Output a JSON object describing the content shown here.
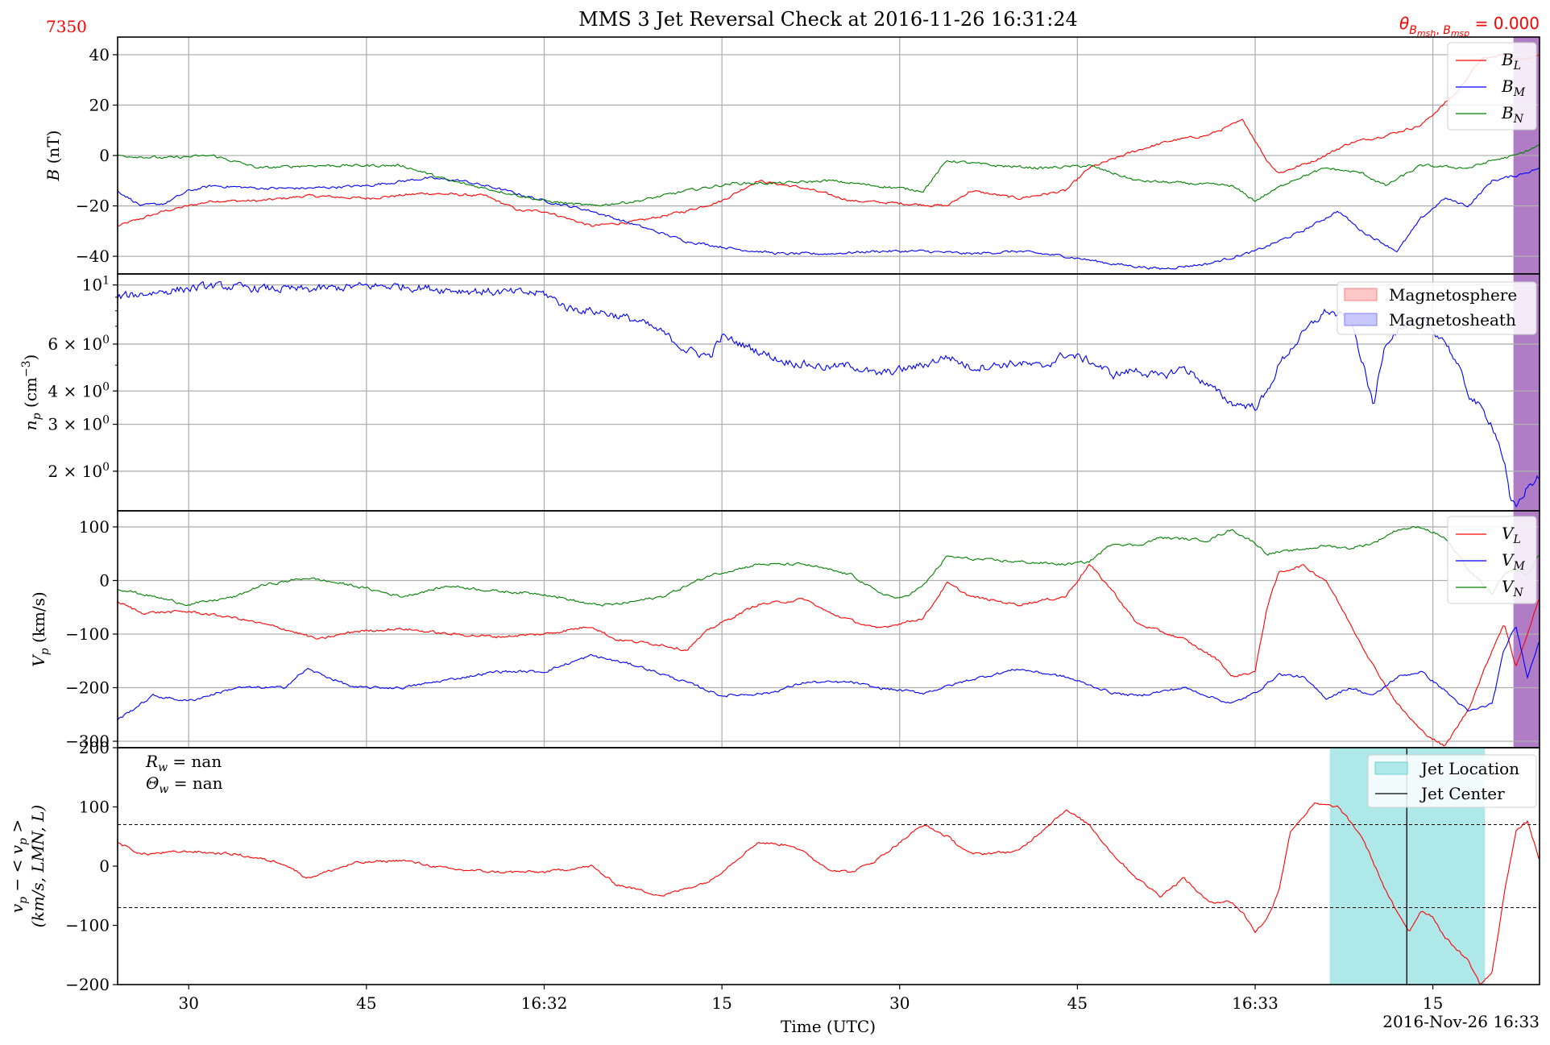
{
  "header": {
    "id_label": "7350",
    "title": "MMS 3 Jet Reversal Check at 2016-11-26 16:31:24",
    "theta_label": "θ_{B_msh, B_msp} = 0.000",
    "theta_prefix": "θ",
    "theta_sub": "B",
    "theta_subsub": "msh",
    "theta_sep": ", ",
    "theta_subsub2": "msp",
    "theta_value": " = 0.000"
  },
  "x_axis": {
    "label": "Time (UTC)",
    "date_label": "2016-Nov-26 16:33",
    "ticks": [
      "30",
      "45",
      "16:32",
      "15",
      "30",
      "45",
      "16:33",
      "15"
    ],
    "tick_seconds": [
      30,
      45,
      60,
      75,
      90,
      105,
      120,
      135
    ],
    "range_seconds": [
      24,
      144
    ]
  },
  "colors": {
    "red": "#ff0000",
    "blue": "#0000ff",
    "green": "#008000",
    "purple_band": "#b07cc6",
    "cyan_band": "#aee8e8",
    "pink_patch": "#ffc8c8",
    "lavender_patch": "#c8c8ff"
  },
  "chart_data": [
    {
      "type": "line",
      "ylabel": "B (nT)",
      "ylim": [
        -47,
        47
      ],
      "yticks": [
        40,
        20,
        0,
        -20,
        -40
      ],
      "ytick_labels": [
        "40",
        "20",
        "0",
        "−20",
        "−40"
      ],
      "grid": true,
      "band": {
        "x_start": 141.8,
        "x_end": 144,
        "color": "purple"
      },
      "series": [
        {
          "name": "B_L",
          "color": "red",
          "x": [
            24,
            28,
            32,
            36,
            40,
            45,
            50,
            55,
            58,
            60,
            64,
            68,
            72,
            75,
            78,
            82,
            86,
            90,
            94,
            96,
            100,
            104,
            106,
            110,
            113,
            116,
            119,
            121,
            122,
            125,
            128,
            131,
            134,
            137,
            139,
            141,
            142,
            144
          ],
          "values": [
            -28,
            -22,
            -18,
            -18,
            -16,
            -17,
            -15,
            -16,
            -22,
            -22,
            -28,
            -26,
            -22,
            -18,
            -10,
            -13,
            -18,
            -19,
            -20,
            -14,
            -17,
            -14,
            -5,
            2,
            6,
            8,
            14,
            -2,
            -7,
            -2,
            5,
            8,
            12,
            25,
            38,
            40,
            38,
            40
          ]
        },
        {
          "name": "B_M",
          "color": "blue",
          "x": [
            24,
            26,
            28,
            30,
            32,
            36,
            40,
            45,
            50,
            53,
            56,
            60,
            64,
            68,
            72,
            76,
            80,
            84,
            88,
            92,
            96,
            100,
            104,
            108,
            112,
            116,
            120,
            124,
            127,
            129,
            132,
            134,
            136,
            138,
            140,
            142,
            144
          ],
          "values": [
            -14,
            -20,
            -19,
            -14,
            -12,
            -13,
            -13,
            -12,
            -9,
            -10,
            -13,
            -18,
            -22,
            -28,
            -34,
            -37,
            -39,
            -39,
            -38,
            -38,
            -39,
            -38,
            -40,
            -43,
            -45,
            -43,
            -38,
            -30,
            -22,
            -30,
            -38,
            -25,
            -17,
            -20,
            -10,
            -8,
            -5
          ]
        },
        {
          "name": "B_N",
          "color": "green",
          "x": [
            24,
            28,
            32,
            36,
            40,
            45,
            48,
            52,
            56,
            60,
            64,
            68,
            72,
            76,
            80,
            84,
            88,
            92,
            94,
            98,
            102,
            106,
            110,
            114,
            118,
            120,
            123,
            126,
            129,
            131,
            134,
            138,
            140,
            142,
            144
          ],
          "values": [
            0,
            -1,
            0,
            -5,
            -4,
            -4,
            -4,
            -10,
            -14,
            -18,
            -20,
            -18,
            -14,
            -11,
            -11,
            -10,
            -12,
            -14,
            -2,
            -4,
            -5,
            -4,
            -10,
            -11,
            -12,
            -18,
            -10,
            -5,
            -7,
            -12,
            -4,
            -5,
            -2,
            0,
            4
          ]
        }
      ],
      "legend": [
        "B_L",
        "B_M",
        "B_N"
      ],
      "legend_position": "upper right"
    },
    {
      "type": "line",
      "ylabel": "n_p (cm^-3)",
      "yscale": "log",
      "ylim": [
        1.42,
        11.0
      ],
      "yticks": [
        10,
        6,
        4,
        3,
        2
      ],
      "ytick_labels": [
        "10^1",
        "6 × 10^0",
        "4 × 10^0",
        "3 × 10^0",
        "2 × 10^0"
      ],
      "grid": true,
      "band": {
        "x_start": 141.8,
        "x_end": 144,
        "color": "purple"
      },
      "series": [
        {
          "name": "n_p",
          "color": "blue",
          "x": [
            24,
            28,
            32,
            36,
            40,
            45,
            48,
            52,
            56,
            60,
            62,
            65,
            68,
            70,
            72,
            74,
            75,
            77,
            80,
            84,
            86,
            88,
            92,
            94,
            96,
            100,
            102,
            104,
            106,
            108,
            110,
            112,
            114,
            116,
            118,
            120,
            121,
            122,
            124,
            126,
            128,
            129,
            130,
            131,
            132,
            134,
            136,
            138,
            140,
            141,
            141.5,
            142,
            143,
            144
          ],
          "values": [
            9.0,
            9.5,
            9.9,
            9.7,
            9.6,
            9.9,
            9.9,
            9.6,
            9.4,
            9.3,
            8.2,
            7.9,
            7.3,
            6.6,
            5.7,
            5.4,
            6.4,
            5.9,
            5.2,
            4.9,
            5.0,
            4.6,
            5.0,
            5.4,
            4.9,
            5.1,
            4.9,
            5.5,
            5.2,
            4.6,
            4.8,
            4.5,
            4.9,
            4.2,
            3.6,
            3.5,
            3.9,
            5.0,
            6.5,
            8.0,
            7.4,
            5.2,
            3.4,
            6.1,
            6.8,
            7.3,
            6.2,
            3.9,
            3.0,
            2.2,
            1.55,
            1.45,
            1.75,
            1.9
          ]
        }
      ],
      "legend_patches": [
        {
          "label": "Magnetosphere",
          "color": "pink"
        },
        {
          "label": "Magnetosheath",
          "color": "lavender"
        }
      ],
      "legend_position": "upper right"
    },
    {
      "type": "line",
      "ylabel": "V_p (km/s)",
      "ylim": [
        -312,
        130
      ],
      "yticks": [
        100,
        0,
        -100,
        -200,
        -300
      ],
      "ytick_labels": [
        "100",
        "0",
        "−100",
        "−200",
        "−300"
      ],
      "grid": true,
      "band": {
        "x_start": 141.8,
        "x_end": 144,
        "color": "purple"
      },
      "series": [
        {
          "name": "V_L",
          "color": "red",
          "x": [
            24,
            26,
            30,
            34,
            38,
            41,
            44,
            48,
            52,
            56,
            60,
            64,
            66,
            70,
            72,
            74,
            78,
            82,
            84,
            88,
            92,
            94,
            96,
            100,
            104,
            106,
            108,
            110,
            114,
            117,
            118,
            120,
            121,
            122,
            124,
            126,
            128,
            130,
            132,
            134,
            136,
            138,
            140,
            141,
            142,
            143,
            144
          ],
          "values": [
            -40,
            -60,
            -58,
            -70,
            -90,
            -110,
            -95,
            -90,
            -100,
            -105,
            -100,
            -85,
            -110,
            -120,
            -130,
            -90,
            -45,
            -35,
            -60,
            -90,
            -70,
            -5,
            -30,
            -45,
            -30,
            30,
            -20,
            -80,
            -110,
            -150,
            -180,
            -170,
            -50,
            15,
            28,
            0,
            -80,
            -160,
            -230,
            -280,
            -310,
            -240,
            -130,
            -80,
            -160,
            -100,
            -30
          ]
        },
        {
          "name": "V_M",
          "color": "blue",
          "x": [
            24,
            27,
            30,
            34,
            38,
            40,
            44,
            48,
            52,
            56,
            60,
            64,
            68,
            72,
            75,
            79,
            82,
            86,
            88,
            92,
            96,
            100,
            104,
            108,
            110,
            114,
            118,
            120,
            122,
            124,
            126,
            128,
            130,
            132,
            134,
            136,
            138,
            140,
            141,
            142,
            143,
            144
          ],
          "values": [
            -260,
            -215,
            -225,
            -200,
            -200,
            -165,
            -200,
            -200,
            -185,
            -170,
            -170,
            -140,
            -160,
            -190,
            -215,
            -210,
            -190,
            -190,
            -200,
            -210,
            -185,
            -165,
            -180,
            -210,
            -215,
            -200,
            -230,
            -210,
            -175,
            -180,
            -220,
            -200,
            -215,
            -180,
            -170,
            -205,
            -245,
            -230,
            -130,
            -85,
            -180,
            -110
          ]
        },
        {
          "name": "V_N",
          "color": "green",
          "x": [
            24,
            27,
            30,
            34,
            36,
            40,
            44,
            48,
            52,
            56,
            60,
            64,
            66,
            70,
            74,
            78,
            82,
            86,
            88,
            90,
            92,
            94,
            96,
            100,
            104,
            106,
            108,
            110,
            112,
            116,
            118,
            120,
            121,
            123,
            126,
            128,
            130,
            132,
            134,
            136,
            138,
            140,
            141,
            142,
            143,
            144
          ],
          "values": [
            -15,
            -30,
            -45,
            -30,
            -10,
            5,
            -10,
            -30,
            -10,
            -20,
            -25,
            -45,
            -45,
            -30,
            10,
            30,
            30,
            10,
            -20,
            -35,
            -10,
            45,
            40,
            35,
            30,
            35,
            70,
            65,
            80,
            75,
            95,
            70,
            50,
            55,
            65,
            60,
            70,
            95,
            100,
            80,
            20,
            -25,
            10,
            20,
            10,
            50
          ]
        }
      ],
      "legend": [
        "V_L",
        "V_M",
        "V_N"
      ],
      "legend_position": "upper right"
    },
    {
      "type": "line",
      "ylabel": "v_p − < v_p > (km/s, LMN, L)",
      "ylim": [
        -200,
        200
      ],
      "yticks": [
        200,
        100,
        0,
        -100,
        -200
      ],
      "ytick_labels": [
        "200",
        "100",
        "0",
        "−100",
        "−200"
      ],
      "grid": false,
      "hlines": [
        70,
        -70
      ],
      "jet_location": {
        "x_start": 126.3,
        "x_end": 139.4
      },
      "jet_center": 132.8,
      "annotations": [
        "R_w = nan",
        "Θ_w = nan"
      ],
      "series": [
        {
          "name": "v_p - <v_p>",
          "color": "red",
          "x": [
            24,
            26,
            30,
            34,
            38,
            40,
            44,
            48,
            52,
            56,
            60,
            64,
            66,
            70,
            74,
            78,
            81,
            84,
            86,
            88,
            92,
            94,
            96,
            100,
            104,
            106,
            108,
            110,
            112,
            114,
            116,
            118,
            119,
            120,
            121,
            122,
            123,
            125,
            127,
            129,
            131,
            132,
            133,
            134,
            135,
            136,
            138,
            139,
            140,
            141,
            142,
            143,
            144
          ],
          "values": [
            40,
            20,
            25,
            20,
            5,
            -20,
            5,
            10,
            -5,
            -10,
            -10,
            0,
            -30,
            -50,
            -25,
            40,
            35,
            -5,
            -10,
            10,
            70,
            50,
            20,
            25,
            95,
            70,
            20,
            -20,
            -50,
            -20,
            -60,
            -60,
            -80,
            -110,
            -90,
            -40,
            60,
            105,
            100,
            50,
            -40,
            -80,
            -110,
            -75,
            -85,
            -120,
            -160,
            -200,
            -180,
            -50,
            60,
            75,
            10
          ]
        }
      ],
      "legend": [
        "Jet Location",
        "Jet Center"
      ],
      "legend_position": "upper right"
    }
  ]
}
